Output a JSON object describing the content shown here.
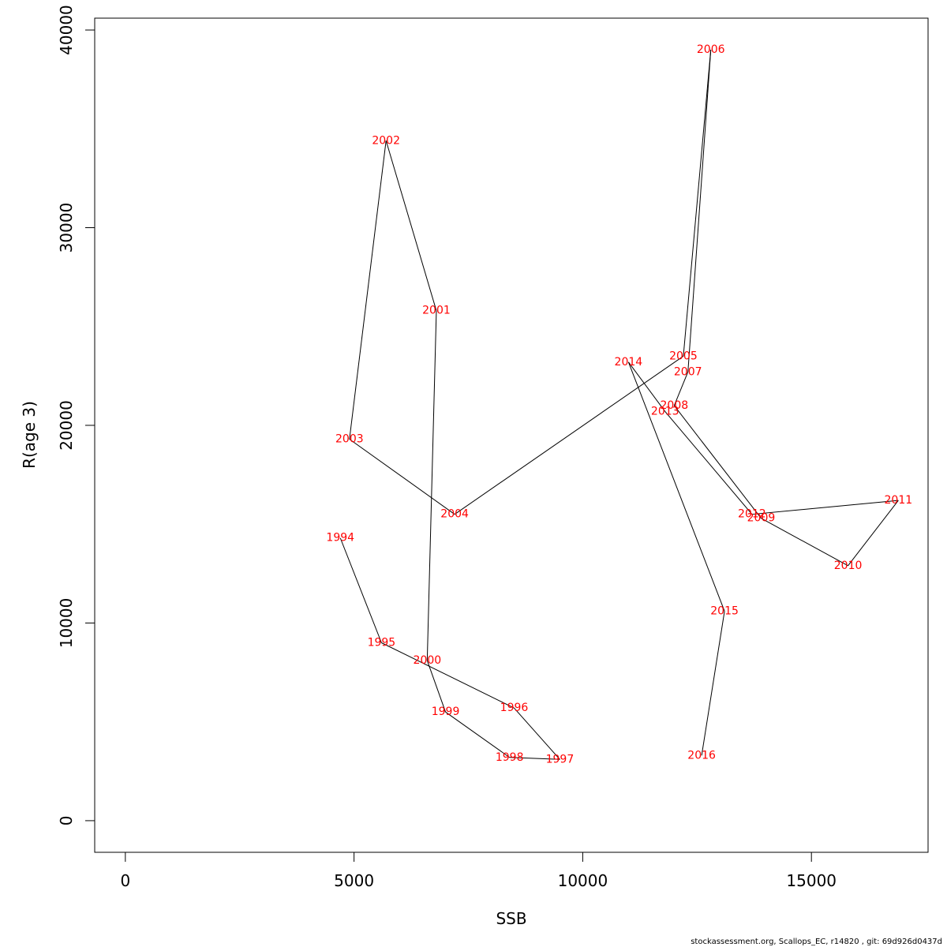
{
  "chart_data": {
    "type": "line",
    "title": "",
    "xlabel": "SSB",
    "ylabel": "R(age 3)",
    "xlim": [
      -670,
      17550
    ],
    "ylim": [
      -1600,
      40600
    ],
    "x_ticks": [
      0,
      5000,
      10000,
      15000
    ],
    "y_ticks": [
      0,
      10000,
      20000,
      30000,
      40000
    ],
    "x_tick_labels": [
      "0",
      "5000",
      "10000",
      "15000"
    ],
    "y_tick_labels": [
      "0",
      "10000",
      "20000",
      "30000",
      "40000"
    ],
    "grid": false,
    "legend": "none",
    "line_color": "#000000",
    "label_color": "#ff0000",
    "points": [
      {
        "year": "1994",
        "x": 4700,
        "y": 14300
      },
      {
        "year": "1995",
        "x": 5600,
        "y": 9000
      },
      {
        "year": "1996",
        "x": 8500,
        "y": 5700
      },
      {
        "year": "1997",
        "x": 9500,
        "y": 3100
      },
      {
        "year": "1998",
        "x": 8400,
        "y": 3200
      },
      {
        "year": "1999",
        "x": 7000,
        "y": 5500
      },
      {
        "year": "2000",
        "x": 6600,
        "y": 8100
      },
      {
        "year": "2001",
        "x": 6800,
        "y": 25800
      },
      {
        "year": "2002",
        "x": 5700,
        "y": 34400
      },
      {
        "year": "2003",
        "x": 4900,
        "y": 19300
      },
      {
        "year": "2004",
        "x": 7200,
        "y": 15500
      },
      {
        "year": "2005",
        "x": 12200,
        "y": 23500
      },
      {
        "year": "2006",
        "x": 12800,
        "y": 39000
      },
      {
        "year": "2007",
        "x": 12300,
        "y": 22700
      },
      {
        "year": "2008",
        "x": 12000,
        "y": 21000
      },
      {
        "year": "2009",
        "x": 13900,
        "y": 15300
      },
      {
        "year": "2010",
        "x": 15800,
        "y": 12900
      },
      {
        "year": "2011",
        "x": 16900,
        "y": 16200
      },
      {
        "year": "2012",
        "x": 13700,
        "y": 15500
      },
      {
        "year": "2013",
        "x": 11800,
        "y": 20700
      },
      {
        "year": "2014",
        "x": 11000,
        "y": 23200
      },
      {
        "year": "2015",
        "x": 13100,
        "y": 10600
      },
      {
        "year": "2016",
        "x": 12600,
        "y": 3300
      }
    ]
  },
  "footer": "stockassessment.org, Scallops_EC, r14820 , git: 69d926d0437d"
}
